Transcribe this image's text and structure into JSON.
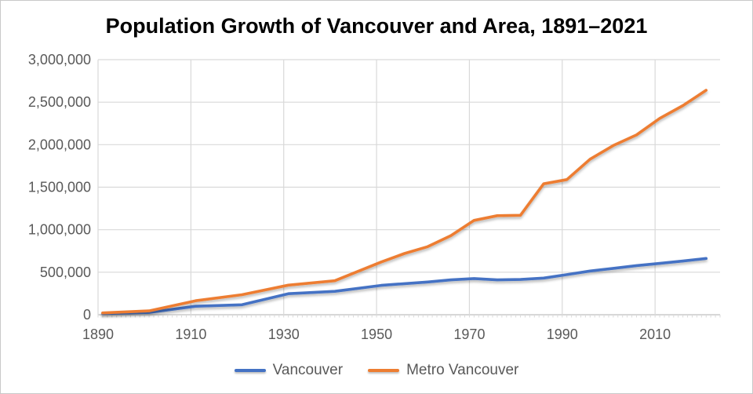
{
  "chart_data": {
    "type": "line",
    "title": "Population Growth of Vancouver and Area, 1891–2021",
    "x": [
      1891,
      1901,
      1911,
      1921,
      1931,
      1941,
      1951,
      1956,
      1961,
      1966,
      1971,
      1976,
      1981,
      1986,
      1991,
      1996,
      2001,
      2006,
      2011,
      2016,
      2021
    ],
    "series": [
      {
        "name": "Vancouver",
        "color": "#4472C4",
        "values": [
          14000,
          27000,
          100000,
          117000,
          247000,
          275000,
          345000,
          366000,
          385000,
          410000,
          426000,
          410000,
          414000,
          431000,
          472000,
          514000,
          546000,
          578000,
          604000,
          631000,
          662000
        ]
      },
      {
        "name": "Metro Vancouver",
        "color": "#ED7D31",
        "values": [
          21000,
          45000,
          164000,
          235000,
          348000,
          400000,
          620000,
          720000,
          800000,
          930000,
          1110000,
          1165000,
          1170000,
          1540000,
          1590000,
          1830000,
          1990000,
          2115000,
          2310000,
          2460000,
          2640000
        ]
      }
    ],
    "xlabel": "",
    "ylabel": "",
    "x_ticks": [
      1890,
      1910,
      1930,
      1950,
      1970,
      1990,
      2010
    ],
    "y_ticks": [
      0,
      500000,
      1000000,
      1500000,
      2000000,
      2500000,
      3000000
    ],
    "xlim": [
      1890,
      2024
    ],
    "ylim": [
      0,
      3000000
    ],
    "grid": true,
    "legend_position": "bottom",
    "colors": {
      "axis_label": "#595959",
      "gridline": "#D9D9D9",
      "axis_line": "#BFBFBF",
      "title": "#000000"
    }
  }
}
